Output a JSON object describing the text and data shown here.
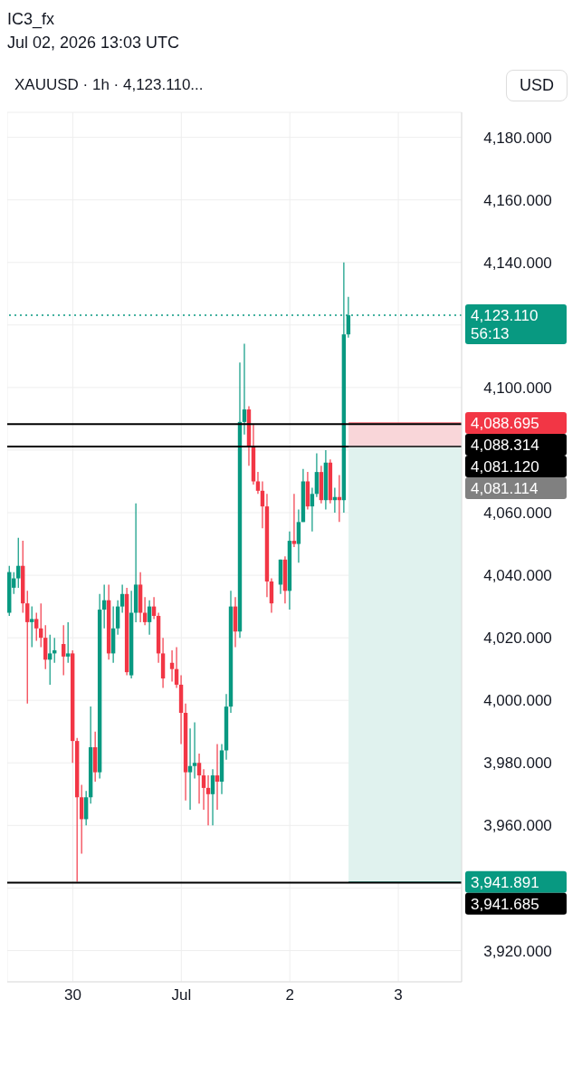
{
  "chart_data": {
    "type": "candlestick",
    "title": "IC3_fx",
    "subtitle": "Jul 02, 2026 13:03 UTC",
    "ylabel": "USD",
    "annotations": [
      "XAUUSD · 1h · 4,123.110...",
      "56:13"
    ],
    "x": [
      "2026-06-29T10:00",
      "2026-06-29T11:00",
      "2026-06-29T12:00",
      "2026-06-29T13:00",
      "2026-06-29T14:00",
      "2026-06-29T15:00",
      "2026-06-29T16:00",
      "2026-06-29T17:00",
      "2026-06-29T18:00",
      "2026-06-29T19:00",
      "2026-06-29T20:00",
      "2026-06-29T22:00",
      "2026-06-29T23:00",
      "2026-06-30T00:00",
      "2026-06-30T01:00",
      "2026-06-30T02:00",
      "2026-06-30T03:00",
      "2026-06-30T04:00",
      "2026-06-30T05:00",
      "2026-06-30T06:00",
      "2026-06-30T07:00",
      "2026-06-30T08:00",
      "2026-06-30T09:00",
      "2026-06-30T10:00",
      "2026-06-30T11:00",
      "2026-06-30T12:00",
      "2026-06-30T13:00",
      "2026-06-30T14:00",
      "2026-06-30T15:00",
      "2026-06-30T16:00",
      "2026-06-30T17:00",
      "2026-06-30T18:00",
      "2026-06-30T19:00",
      "2026-06-30T20:00",
      "2026-06-30T22:00",
      "2026-06-30T23:00",
      "2026-07-01T00:00",
      "2026-07-01T01:00",
      "2026-07-01T02:00",
      "2026-07-01T03:00",
      "2026-07-01T04:00",
      "2026-07-01T05:00",
      "2026-07-01T06:00",
      "2026-07-01T07:00",
      "2026-07-01T08:00",
      "2026-07-01T09:00",
      "2026-07-01T10:00",
      "2026-07-01T11:00",
      "2026-07-01T12:00",
      "2026-07-01T13:00",
      "2026-07-01T14:00",
      "2026-07-01T15:00",
      "2026-07-01T16:00",
      "2026-07-01T17:00",
      "2026-07-01T18:00",
      "2026-07-01T19:00",
      "2026-07-01T20:00",
      "2026-07-01T22:00",
      "2026-07-01T23:00",
      "2026-07-02T00:00",
      "2026-07-02T01:00",
      "2026-07-02T02:00",
      "2026-07-02T03:00",
      "2026-07-02T04:00",
      "2026-07-02T05:00",
      "2026-07-02T06:00",
      "2026-07-02T07:00",
      "2026-07-02T08:00",
      "2026-07-02T09:00",
      "2026-07-02T10:00",
      "2026-07-02T11:00",
      "2026-07-02T12:00",
      "2026-07-02T13:00"
    ],
    "ohlc": [
      [
        4028,
        4043,
        4027,
        4041
      ],
      [
        4036,
        4041,
        4034,
        4039
      ],
      [
        4039,
        4052,
        4036,
        4043
      ],
      [
        4043,
        4051,
        4028,
        4031
      ],
      [
        4031,
        4035,
        3999,
        4025
      ],
      [
        4025,
        4030,
        4017,
        4026
      ],
      [
        4026,
        4028,
        4019,
        4023
      ],
      [
        4023,
        4031,
        4017,
        4020
      ],
      [
        4020,
        4024,
        4010,
        4013
      ],
      [
        4013,
        4021,
        4005,
        4015
      ],
      [
        4015,
        4020,
        4012,
        4016
      ],
      [
        4018,
        4024,
        4008,
        4014
      ],
      [
        4014,
        4025,
        4012,
        4015
      ],
      [
        4015,
        4016,
        3980,
        3987
      ],
      [
        3987,
        3988,
        3942,
        3969
      ],
      [
        3969,
        3973,
        3951,
        3962
      ],
      [
        3962,
        3971,
        3960,
        3969
      ],
      [
        3969,
        3998,
        3967,
        3985
      ],
      [
        3985,
        3990,
        3974,
        3977
      ],
      [
        3977,
        4034,
        3975,
        4029
      ],
      [
        4029,
        4037,
        4023,
        4032
      ],
      [
        4032,
        4037,
        4013,
        4015
      ],
      [
        4015,
        4030,
        4012,
        4023
      ],
      [
        4023,
        4032,
        4021,
        4030
      ],
      [
        4030,
        4037,
        4028,
        4034
      ],
      [
        4034,
        4036,
        4008,
        4009
      ],
      [
        4008,
        4035,
        4007,
        4028
      ],
      [
        4028,
        4063,
        4025,
        4037
      ],
      [
        4037,
        4041,
        4025,
        4028
      ],
      [
        4028,
        4033,
        4024,
        4025
      ],
      [
        4025,
        4032,
        4021,
        4030
      ],
      [
        4030,
        4033,
        4026,
        4027
      ],
      [
        4027,
        4028,
        4012,
        4015
      ],
      [
        4015,
        4020,
        4004,
        4007
      ],
      [
        4012,
        4016,
        4006,
        4010
      ],
      [
        4010,
        4017,
        4004,
        4005
      ],
      [
        4005,
        4008,
        3986,
        3996
      ],
      [
        3996,
        3999,
        3968,
        3977
      ],
      [
        3977,
        3991,
        3965,
        3979
      ],
      [
        3979,
        3993,
        3975,
        3980
      ],
      [
        3980,
        3983,
        3967,
        3976
      ],
      [
        3976,
        3978,
        3965,
        3972
      ],
      [
        3972,
        3976,
        3960,
        3970
      ],
      [
        3970,
        3978,
        3960,
        3976
      ],
      [
        3976,
        3986,
        3965,
        3974
      ],
      [
        3974,
        3986,
        3970,
        3984
      ],
      [
        3984,
        4002,
        3981,
        3998
      ],
      [
        3998,
        4035,
        3996,
        4030
      ],
      [
        4030,
        4033,
        4017,
        4022
      ],
      [
        4022,
        4108,
        4020,
        4089
      ],
      [
        4089,
        4114,
        4085,
        4093
      ],
      [
        4093,
        4094,
        4075,
        4081.12
      ],
      [
        4081,
        4088.314,
        4069,
        4070
      ],
      [
        4070,
        4073,
        4066,
        4067
      ],
      [
        4067,
        4070,
        4055,
        4062
      ],
      [
        4062,
        4066,
        4033,
        4038
      ],
      [
        4038,
        4039,
        4028,
        4031
      ],
      [
        4037,
        4045,
        4034,
        4045
      ],
      [
        4045,
        4046,
        4031,
        4035
      ],
      [
        4035,
        4054,
        4029,
        4051
      ],
      [
        4051,
        4066,
        4049,
        4050
      ],
      [
        4050,
        4061,
        4044,
        4057
      ],
      [
        4057,
        4074,
        4057,
        4070
      ],
      [
        4070,
        4073,
        4061,
        4062
      ],
      [
        4062,
        4068,
        4054,
        4066
      ],
      [
        4066,
        4079,
        4065,
        4073
      ],
      [
        4073,
        4075,
        4063,
        4064
      ],
      [
        4064,
        4080,
        4061,
        4076
      ],
      [
        4076,
        4077,
        4063,
        4064
      ],
      [
        4064,
        4068,
        4060,
        4065
      ],
      [
        4065,
        4072,
        4057,
        4064
      ],
      [
        4064,
        4140,
        4060,
        4117
      ],
      [
        4117,
        4129,
        4116,
        4123.11
      ]
    ],
    "xlim": [
      "2026-06-29T09:30",
      "2026-07-03T14:00"
    ],
    "xticks": [
      {
        "value": "2026-06-30",
        "label": "30"
      },
      {
        "value": "2026-07-01",
        "label": "Jul"
      },
      {
        "value": "2026-07-02",
        "label": "2"
      },
      {
        "value": "2026-07-03",
        "label": "3"
      }
    ],
    "ylim": [
      3910,
      4188
    ],
    "yticks": [
      {
        "value": 3920,
        "label": "3,920.000"
      },
      {
        "value": 3940,
        "label": null
      },
      {
        "value": 3960,
        "label": "3,960.000"
      },
      {
        "value": 3980,
        "label": "3,980.000"
      },
      {
        "value": 4000,
        "label": "4,000.000"
      },
      {
        "value": 4020,
        "label": "4,020.000"
      },
      {
        "value": 4040,
        "label": "4,040.000"
      },
      {
        "value": 4060,
        "label": "4,060.000"
      },
      {
        "value": 4080,
        "label": null
      },
      {
        "value": 4100,
        "label": "4,100.000"
      },
      {
        "value": 4120,
        "label": null
      },
      {
        "value": 4140,
        "label": "4,140.000"
      },
      {
        "value": 4160,
        "label": "4,160.000"
      },
      {
        "value": 4180,
        "label": "4,180.000"
      }
    ],
    "grid": true,
    "bands": [
      {
        "axis": "y",
        "from": 4081.12,
        "to": 4088.695,
        "color": "#f9d6d9"
      },
      {
        "axis": "y",
        "from": 3941.891,
        "to": 4081.12,
        "color": "#e0f2ee"
      }
    ],
    "ref_lines": [
      {
        "axis": "y",
        "value": 4123.11,
        "label": "4,123.110",
        "color": "#089981",
        "line_style": "dotted"
      },
      {
        "axis": "y",
        "value": 4088.695,
        "label": "4,088.695",
        "color": "#f23645"
      },
      {
        "axis": "y",
        "value": 4088.314,
        "label": "4,088.314",
        "color": "#000000",
        "line_style": "solid"
      },
      {
        "axis": "y",
        "value": 4081.12,
        "label": "4,081.120",
        "color": "#000000",
        "line_style": "solid"
      },
      {
        "axis": "y",
        "value": 4081.114,
        "label": "4,081.114",
        "color": "#808080"
      },
      {
        "axis": "y",
        "value": 3941.891,
        "label": "3,941.891",
        "color": "#089981"
      },
      {
        "axis": "y",
        "value": 3941.685,
        "label": "3,941.685",
        "color": "#000000",
        "line_style": "solid"
      }
    ]
  }
}
